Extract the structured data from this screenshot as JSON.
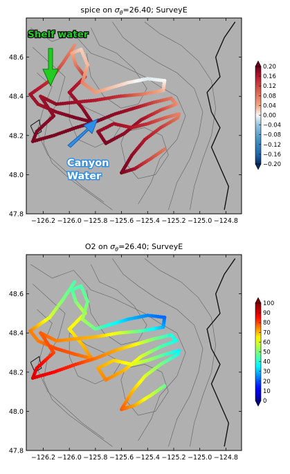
{
  "figure": {
    "panels": [
      {
        "title": "spice on σθ=26.40; SurveyE",
        "title_main": "spice on ",
        "title_sigma": "σ",
        "title_sub": "θ",
        "title_rest": "=26.40; SurveyE"
      },
      {
        "title": "O2 on σθ=26.40; SurveyE",
        "title_main": "O2 on ",
        "title_sigma": "σ",
        "title_sub": "θ",
        "title_rest": "=26.40; SurveyE"
      }
    ],
    "annotations": {
      "shelf": "Shelf water",
      "canyon_line1": "Canyon",
      "canyon_line2": "Water"
    },
    "colors": {
      "land": "#b0b0b0",
      "contour": "#6b6b6b",
      "coast": "#111111",
      "shelf_arrow": "#22cc22",
      "canyon_arrow": "#2f8fe8"
    }
  },
  "chart_data": [
    {
      "type": "scatter",
      "title": "spice on σθ=26.40; SurveyE",
      "xlim": [
        -126.33,
        -124.68
      ],
      "ylim": [
        47.8,
        48.8
      ],
      "x_ticks": [
        -126.2,
        -126.0,
        -125.8,
        -125.6,
        -125.4,
        -125.2,
        -125.0,
        -124.8
      ],
      "x_tick_labels": [
        "−126.2",
        "−126.0",
        "−125.8",
        "−125.6",
        "−125.4",
        "−125.2",
        "−125.0",
        "−124.8"
      ],
      "y_ticks": [
        47.8,
        48.0,
        48.2,
        48.4,
        48.6
      ],
      "y_tick_labels": [
        "47.8",
        "48.0",
        "48.2",
        "48.4",
        "48.6"
      ],
      "colorbar": {
        "colormap": "RdBu_r",
        "min": -0.2,
        "max": 0.2,
        "ticks": [
          "0.20",
          "0.16",
          "0.12",
          "0.08",
          "0.04",
          "0.00",
          "−0.04",
          "−0.08",
          "−0.12",
          "−0.16",
          "−0.20"
        ]
      },
      "track": [
        {
          "lon": -125.96,
          "lat": 48.66,
          "v": 0.06
        },
        {
          "lon": -126.05,
          "lat": 48.57,
          "v": 0.1
        },
        {
          "lon": -126.15,
          "lat": 48.48,
          "v": 0.14
        },
        {
          "lon": -126.3,
          "lat": 48.41,
          "v": 0.17
        },
        {
          "lon": -126.24,
          "lat": 48.36,
          "v": 0.17
        },
        {
          "lon": -126.1,
          "lat": 48.32,
          "v": 0.18
        },
        {
          "lon": -125.95,
          "lat": 48.29,
          "v": 0.19
        },
        {
          "lon": -125.83,
          "lat": 48.27,
          "v": 0.19
        },
        {
          "lon": -125.9,
          "lat": 48.34,
          "v": 0.18
        },
        {
          "lon": -126.0,
          "lat": 48.42,
          "v": 0.17
        },
        {
          "lon": -125.88,
          "lat": 48.5,
          "v": 0.15
        },
        {
          "lon": -125.95,
          "lat": 48.56,
          "v": 0.08
        },
        {
          "lon": -125.98,
          "lat": 48.62,
          "v": 0.04
        },
        {
          "lon": -125.91,
          "lat": 48.64,
          "v": 0.02
        },
        {
          "lon": -125.86,
          "lat": 48.56,
          "v": 0.03
        },
        {
          "lon": -125.9,
          "lat": 48.47,
          "v": 0.07
        },
        {
          "lon": -125.8,
          "lat": 48.42,
          "v": 0.05
        },
        {
          "lon": -125.7,
          "lat": 48.44,
          "v": 0.03
        },
        {
          "lon": -125.55,
          "lat": 48.47,
          "v": 0.01
        },
        {
          "lon": -125.4,
          "lat": 48.49,
          "v": -0.01
        },
        {
          "lon": -125.27,
          "lat": 48.48,
          "v": 0.0
        },
        {
          "lon": -125.28,
          "lat": 48.43,
          "v": 0.03
        },
        {
          "lon": -125.45,
          "lat": 48.41,
          "v": 0.08
        },
        {
          "lon": -125.62,
          "lat": 48.4,
          "v": 0.14
        },
        {
          "lon": -125.8,
          "lat": 48.38,
          "v": 0.16
        },
        {
          "lon": -125.95,
          "lat": 48.37,
          "v": 0.17
        },
        {
          "lon": -126.1,
          "lat": 48.36,
          "v": 0.18
        },
        {
          "lon": -126.22,
          "lat": 48.4,
          "v": 0.17
        },
        {
          "lon": -126.12,
          "lat": 48.3,
          "v": 0.18
        },
        {
          "lon": -126.25,
          "lat": 48.22,
          "v": 0.19
        },
        {
          "lon": -126.28,
          "lat": 48.17,
          "v": 0.19
        },
        {
          "lon": -126.12,
          "lat": 48.2,
          "v": 0.19
        },
        {
          "lon": -125.95,
          "lat": 48.24,
          "v": 0.19
        },
        {
          "lon": -125.8,
          "lat": 48.27,
          "v": 0.19
        },
        {
          "lon": -125.65,
          "lat": 48.31,
          "v": 0.18
        },
        {
          "lon": -125.5,
          "lat": 48.34,
          "v": 0.17
        },
        {
          "lon": -125.35,
          "lat": 48.37,
          "v": 0.12
        },
        {
          "lon": -125.22,
          "lat": 48.39,
          "v": 0.08
        },
        {
          "lon": -125.18,
          "lat": 48.36,
          "v": 0.06
        },
        {
          "lon": -125.3,
          "lat": 48.33,
          "v": 0.12
        },
        {
          "lon": -125.45,
          "lat": 48.28,
          "v": 0.17
        },
        {
          "lon": -125.58,
          "lat": 48.21,
          "v": 0.18
        },
        {
          "lon": -125.72,
          "lat": 48.16,
          "v": 0.19
        },
        {
          "lon": -125.78,
          "lat": 48.22,
          "v": 0.18
        },
        {
          "lon": -125.66,
          "lat": 48.26,
          "v": 0.17
        },
        {
          "lon": -125.52,
          "lat": 48.24,
          "v": 0.16
        },
        {
          "lon": -125.4,
          "lat": 48.26,
          "v": 0.14
        },
        {
          "lon": -125.27,
          "lat": 48.29,
          "v": 0.1
        },
        {
          "lon": -125.16,
          "lat": 48.31,
          "v": 0.07
        },
        {
          "lon": -125.17,
          "lat": 48.29,
          "v": 0.08
        },
        {
          "lon": -125.3,
          "lat": 48.24,
          "v": 0.13
        },
        {
          "lon": -125.42,
          "lat": 48.18,
          "v": 0.16
        },
        {
          "lon": -125.52,
          "lat": 48.1,
          "v": 0.18
        },
        {
          "lon": -125.6,
          "lat": 48.01,
          "v": 0.19
        },
        {
          "lon": -125.5,
          "lat": 48.03,
          "v": 0.17
        },
        {
          "lon": -125.38,
          "lat": 48.08,
          "v": 0.12
        },
        {
          "lon": -125.27,
          "lat": 48.13,
          "v": 0.08
        }
      ]
    },
    {
      "type": "scatter",
      "title": "O2 on σθ=26.40; SurveyE",
      "xlim": [
        -126.33,
        -124.68
      ],
      "ylim": [
        47.8,
        48.8
      ],
      "x_ticks": [
        -126.2,
        -126.0,
        -125.8,
        -125.6,
        -125.4,
        -125.2,
        -125.0,
        -124.8
      ],
      "x_tick_labels": [
        "−126.2",
        "−126.0",
        "−125.8",
        "−125.6",
        "−125.4",
        "−125.2",
        "−125.0",
        "−124.8"
      ],
      "y_ticks": [
        47.8,
        48.0,
        48.2,
        48.4,
        48.6
      ],
      "y_tick_labels": [
        "47.8",
        "48.0",
        "48.2",
        "48.4",
        "48.6"
      ],
      "colorbar": {
        "colormap": "jet",
        "min": 0,
        "max": 100,
        "ticks": [
          "100",
          "90",
          "80",
          "70",
          "60",
          "50",
          "40",
          "30",
          "20",
          "10",
          "0"
        ]
      },
      "track": [
        {
          "lon": -125.96,
          "lat": 48.66,
          "v": 45
        },
        {
          "lon": -126.05,
          "lat": 48.57,
          "v": 50
        },
        {
          "lon": -126.15,
          "lat": 48.48,
          "v": 60
        },
        {
          "lon": -126.3,
          "lat": 48.41,
          "v": 75
        },
        {
          "lon": -126.24,
          "lat": 48.36,
          "v": 75
        },
        {
          "lon": -126.1,
          "lat": 48.32,
          "v": 80
        },
        {
          "lon": -125.95,
          "lat": 48.29,
          "v": 78
        },
        {
          "lon": -125.83,
          "lat": 48.27,
          "v": 74
        },
        {
          "lon": -125.9,
          "lat": 48.34,
          "v": 70
        },
        {
          "lon": -126.0,
          "lat": 48.42,
          "v": 65
        },
        {
          "lon": -125.88,
          "lat": 48.5,
          "v": 60
        },
        {
          "lon": -125.95,
          "lat": 48.56,
          "v": 50
        },
        {
          "lon": -125.98,
          "lat": 48.62,
          "v": 45
        },
        {
          "lon": -125.91,
          "lat": 48.64,
          "v": 45
        },
        {
          "lon": -125.86,
          "lat": 48.56,
          "v": 48
        },
        {
          "lon": -125.9,
          "lat": 48.47,
          "v": 55
        },
        {
          "lon": -125.8,
          "lat": 48.42,
          "v": 48
        },
        {
          "lon": -125.7,
          "lat": 48.44,
          "v": 40
        },
        {
          "lon": -125.55,
          "lat": 48.47,
          "v": 30
        },
        {
          "lon": -125.4,
          "lat": 48.49,
          "v": 25
        },
        {
          "lon": -125.27,
          "lat": 48.48,
          "v": 22
        },
        {
          "lon": -125.28,
          "lat": 48.43,
          "v": 28
        },
        {
          "lon": -125.45,
          "lat": 48.41,
          "v": 45
        },
        {
          "lon": -125.62,
          "lat": 48.4,
          "v": 60
        },
        {
          "lon": -125.8,
          "lat": 48.38,
          "v": 70
        },
        {
          "lon": -125.95,
          "lat": 48.37,
          "v": 72
        },
        {
          "lon": -126.1,
          "lat": 48.36,
          "v": 75
        },
        {
          "lon": -126.22,
          "lat": 48.4,
          "v": 78
        },
        {
          "lon": -126.12,
          "lat": 48.3,
          "v": 80
        },
        {
          "lon": -126.25,
          "lat": 48.22,
          "v": 88
        },
        {
          "lon": -126.28,
          "lat": 48.17,
          "v": 90
        },
        {
          "lon": -126.12,
          "lat": 48.2,
          "v": 86
        },
        {
          "lon": -125.95,
          "lat": 48.24,
          "v": 82
        },
        {
          "lon": -125.8,
          "lat": 48.27,
          "v": 76
        },
        {
          "lon": -125.65,
          "lat": 48.31,
          "v": 72
        },
        {
          "lon": -125.5,
          "lat": 48.34,
          "v": 65
        },
        {
          "lon": -125.35,
          "lat": 48.37,
          "v": 50
        },
        {
          "lon": -125.22,
          "lat": 48.39,
          "v": 40
        },
        {
          "lon": -125.18,
          "lat": 48.36,
          "v": 38
        },
        {
          "lon": -125.3,
          "lat": 48.33,
          "v": 45
        },
        {
          "lon": -125.45,
          "lat": 48.28,
          "v": 60
        },
        {
          "lon": -125.58,
          "lat": 48.21,
          "v": 70
        },
        {
          "lon": -125.72,
          "lat": 48.16,
          "v": 75
        },
        {
          "lon": -125.78,
          "lat": 48.22,
          "v": 72
        },
        {
          "lon": -125.66,
          "lat": 48.26,
          "v": 68
        },
        {
          "lon": -125.52,
          "lat": 48.24,
          "v": 62
        },
        {
          "lon": -125.4,
          "lat": 48.26,
          "v": 55
        },
        {
          "lon": -125.27,
          "lat": 48.29,
          "v": 45
        },
        {
          "lon": -125.16,
          "lat": 48.31,
          "v": 35
        },
        {
          "lon": -125.17,
          "lat": 48.29,
          "v": 38
        },
        {
          "lon": -125.3,
          "lat": 48.24,
          "v": 50
        },
        {
          "lon": -125.42,
          "lat": 48.18,
          "v": 60
        },
        {
          "lon": -125.52,
          "lat": 48.1,
          "v": 70
        },
        {
          "lon": -125.6,
          "lat": 48.01,
          "v": 78
        },
        {
          "lon": -125.5,
          "lat": 48.03,
          "v": 72
        },
        {
          "lon": -125.38,
          "lat": 48.08,
          "v": 60
        },
        {
          "lon": -125.27,
          "lat": 48.13,
          "v": 48
        }
      ]
    }
  ]
}
